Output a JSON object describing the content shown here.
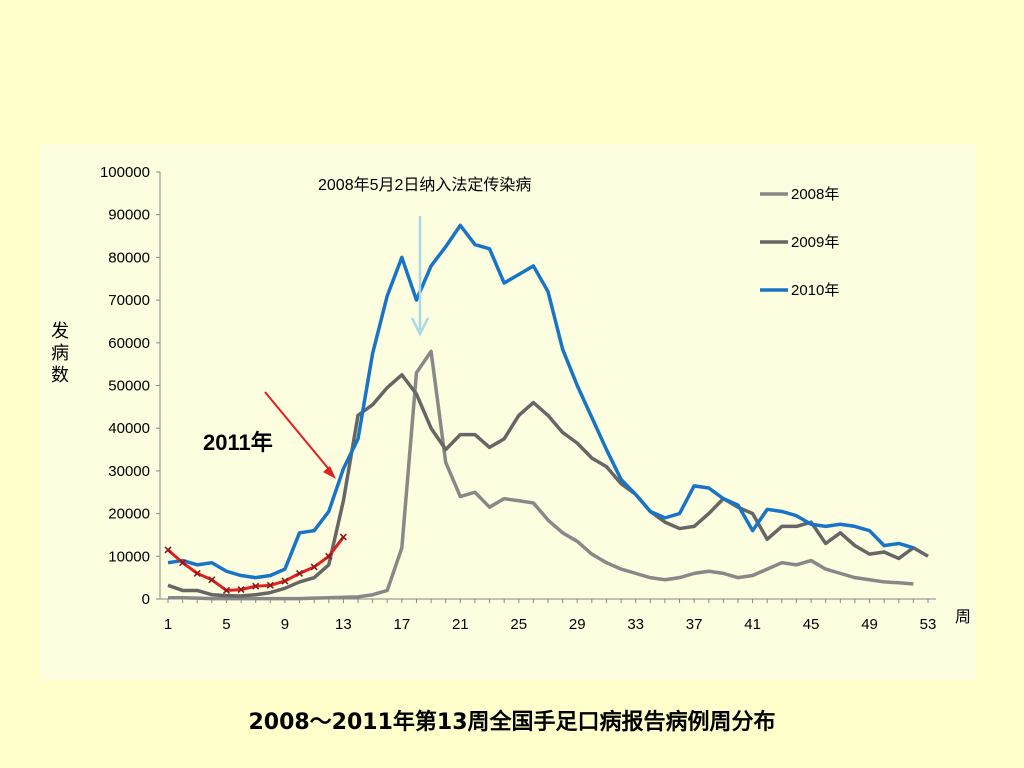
{
  "caption": "2008～2011年第13周全国手足口病报告病例周分布",
  "chart_data": {
    "type": "line",
    "ylabel": "发病数",
    "xlabel": "周",
    "ylim": [
      0,
      100000
    ],
    "yticks": [
      0,
      10000,
      20000,
      30000,
      40000,
      50000,
      60000,
      70000,
      80000,
      90000,
      100000
    ],
    "xlim": [
      1,
      53
    ],
    "xticks": [
      1,
      5,
      9,
      13,
      17,
      21,
      25,
      29,
      33,
      37,
      41,
      45,
      49,
      53
    ],
    "legend_position": "top-right",
    "series": [
      {
        "name": "2008年",
        "color": "#888888",
        "x": [
          1,
          2,
          3,
          4,
          5,
          6,
          7,
          8,
          9,
          10,
          11,
          12,
          13,
          14,
          15,
          16,
          17,
          18,
          19,
          20,
          21,
          22,
          23,
          24,
          25,
          26,
          27,
          28,
          29,
          30,
          31,
          32,
          33,
          34,
          35,
          36,
          37,
          38,
          39,
          40,
          41,
          42,
          43,
          44,
          45,
          46,
          47,
          48,
          49,
          50,
          51,
          52,
          53
        ],
        "values": [
          300,
          300,
          200,
          100,
          100,
          100,
          100,
          100,
          100,
          100,
          200,
          300,
          400,
          500,
          1000,
          2000,
          12000,
          53000,
          58000,
          32000,
          24000,
          25000,
          21500,
          23500,
          23000,
          22500,
          18500,
          15500,
          13500,
          10500,
          8500,
          7000,
          6000,
          5000,
          4500,
          5000,
          6000,
          6500,
          6000,
          5000,
          5500,
          7000,
          8500,
          8000,
          9000,
          7000,
          6000,
          5000,
          4500,
          4000,
          3800,
          3500,
          null
        ]
      },
      {
        "name": "2009年",
        "color": "#666666",
        "x": [
          1,
          2,
          3,
          4,
          5,
          6,
          7,
          8,
          9,
          10,
          11,
          12,
          13,
          14,
          15,
          16,
          17,
          18,
          19,
          20,
          21,
          22,
          23,
          24,
          25,
          26,
          27,
          28,
          29,
          30,
          31,
          32,
          33,
          34,
          35,
          36,
          37,
          38,
          39,
          40,
          41,
          42,
          43,
          44,
          45,
          46,
          47,
          48,
          49,
          50,
          51,
          52,
          53
        ],
        "values": [
          3200,
          2000,
          2000,
          1000,
          800,
          700,
          1000,
          1500,
          2500,
          4000,
          5000,
          8000,
          23000,
          43000,
          45500,
          49500,
          52500,
          48000,
          40000,
          35000,
          38500,
          38500,
          35500,
          37500,
          43000,
          46000,
          43000,
          39000,
          36500,
          33000,
          31000,
          27000,
          24500,
          20500,
          18000,
          16500,
          17000,
          20000,
          23500,
          21500,
          20000,
          14000,
          17000,
          17000,
          18000,
          13000,
          15500,
          12500,
          10500,
          11000,
          9500,
          12000,
          10000
        ]
      },
      {
        "name": "2010年",
        "color": "#1874C6",
        "x": [
          1,
          2,
          3,
          4,
          5,
          6,
          7,
          8,
          9,
          10,
          11,
          12,
          13,
          14,
          15,
          16,
          17,
          18,
          19,
          20,
          21,
          22,
          23,
          24,
          25,
          26,
          27,
          28,
          29,
          30,
          31,
          32,
          33,
          34,
          35,
          36,
          37,
          38,
          39,
          40,
          41,
          42,
          43,
          44,
          45,
          46,
          47,
          48,
          49,
          50,
          51,
          52,
          53
        ],
        "values": [
          8500,
          9000,
          8000,
          8500,
          6500,
          5500,
          5000,
          5500,
          7000,
          15500,
          16000,
          20500,
          30500,
          37500,
          57500,
          71000,
          80000,
          70000,
          78000,
          82500,
          87500,
          83000,
          82000,
          74000,
          76000,
          78000,
          72000,
          58500,
          50000,
          42500,
          35000,
          28000,
          24500,
          20500,
          19000,
          20000,
          26500,
          26000,
          23500,
          22000,
          16000,
          21000,
          20500,
          19500,
          17500,
          17000,
          17500,
          17000,
          16000,
          12500,
          13000,
          12000,
          null
        ]
      },
      {
        "name": "2011年",
        "color": "#E02020",
        "x": [
          1,
          2,
          3,
          4,
          5,
          6,
          7,
          8,
          9,
          10,
          11,
          12,
          13
        ],
        "values": [
          11500,
          8500,
          6000,
          4500,
          2000,
          2200,
          3000,
          3200,
          4200,
          6000,
          7500,
          10000,
          14500
        ]
      }
    ],
    "annotations": {
      "policy_note_date": "2008年5月2日",
      "policy_note_text": "纳入法定传染病",
      "label_2011": "2011年"
    }
  }
}
